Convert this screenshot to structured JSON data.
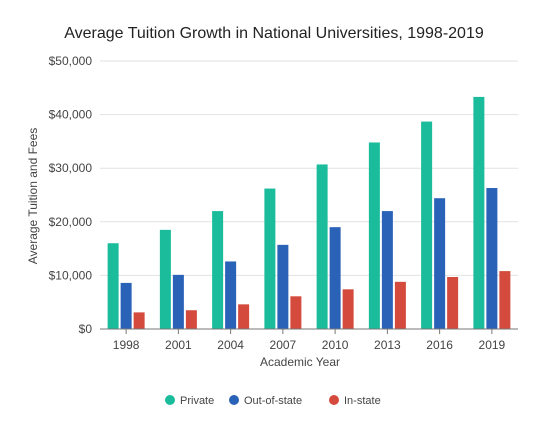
{
  "chart_data": {
    "type": "bar",
    "title": "Average Tuition Growth in National Universities, 1998-2019",
    "xlabel": "Academic Year",
    "ylabel": "Average Tuition and Fees",
    "categories": [
      "1998",
      "2001",
      "2004",
      "2007",
      "2010",
      "2013",
      "2016",
      "2019"
    ],
    "ylim": [
      0,
      50000
    ],
    "yticks": [
      "$0",
      "$10,000",
      "$20,000",
      "$30,000",
      "$40,000",
      "$50,000"
    ],
    "grid": true,
    "legend_position": "bottom",
    "series": [
      {
        "name": "Private",
        "color": "#1abc9c",
        "values": [
          16000,
          18500,
          22000,
          26200,
          30700,
          34800,
          38700,
          43300
        ]
      },
      {
        "name": "Out-of-state",
        "color": "#2a62b8",
        "values": [
          8600,
          10100,
          12600,
          15700,
          19000,
          22000,
          24400,
          26300
        ]
      },
      {
        "name": "In-state",
        "color": "#d44a3c",
        "values": [
          3100,
          3500,
          4600,
          6100,
          7400,
          8800,
          9700,
          10800
        ]
      }
    ]
  }
}
